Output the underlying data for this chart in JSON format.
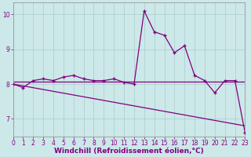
{
  "x": [
    0,
    1,
    2,
    3,
    4,
    5,
    6,
    7,
    8,
    9,
    10,
    11,
    12,
    13,
    14,
    15,
    16,
    17,
    18,
    19,
    20,
    21,
    22,
    23
  ],
  "y_main": [
    8.0,
    7.9,
    8.1,
    8.15,
    8.1,
    8.2,
    8.25,
    8.15,
    8.1,
    8.1,
    8.15,
    8.05,
    8.0,
    10.1,
    9.5,
    9.4,
    8.9,
    9.1,
    8.25,
    8.1,
    7.75,
    8.1,
    8.1,
    6.6
  ],
  "y_line1_start": 8.08,
  "y_line1_end": 8.08,
  "y_line2_start": 8.0,
  "y_line2_end": 6.8,
  "line_color": "#800080",
  "bg_color": "#cce8e8",
  "grid_color": "#aacccc",
  "axis_color": "#800080",
  "xlabel": "Windchill (Refroidissement éolien,°C)",
  "xlabel_fontsize": 6.5,
  "tick_fontsize": 5.5,
  "ylim": [
    6.5,
    10.35
  ],
  "xlim": [
    0,
    23
  ],
  "yticks": [
    7,
    8,
    9,
    10
  ],
  "xticks": [
    0,
    1,
    2,
    3,
    4,
    5,
    6,
    7,
    8,
    9,
    10,
    11,
    12,
    13,
    14,
    15,
    16,
    17,
    18,
    19,
    20,
    21,
    22,
    23
  ]
}
